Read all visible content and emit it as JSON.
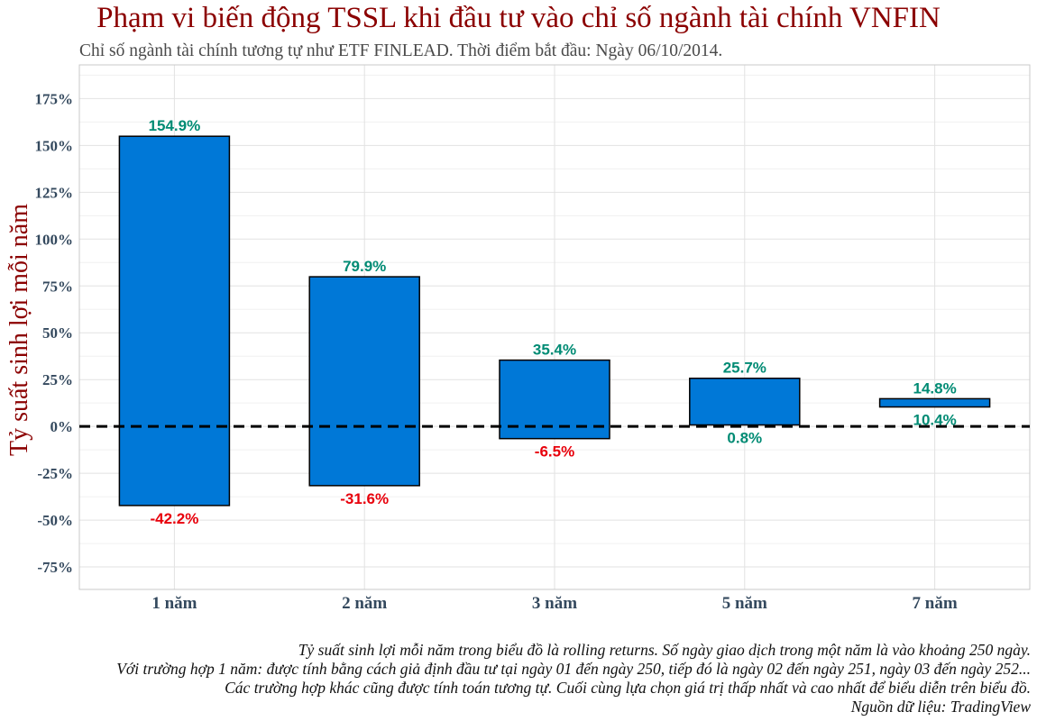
{
  "chart_data": {
    "type": "bar",
    "title": "Phạm vi biến động TSSL khi đầu tư vào chỉ số ngành tài chính VNFIN",
    "subtitle": "Chỉ số ngành tài chính tương tự như ETF FINLEAD. Thời điểm bắt đầu: Ngày 06/10/2014.",
    "xlabel": "",
    "ylabel": "Tỷ suất sinh lợi mỗi năm",
    "categories": [
      "1 năm",
      "2 năm",
      "3 năm",
      "5 năm",
      "7 năm"
    ],
    "series": [
      {
        "values": [
          -42.2,
          -31.6,
          -6.5,
          0.8,
          10.4
        ]
      },
      {
        "values": [
          154.9,
          79.9,
          35.4,
          25.7,
          14.8
        ]
      }
    ],
    "min_labels": [
      "-42.2%",
      "-31.6%",
      "-6.5%",
      "0.8%",
      "10.4%"
    ],
    "max_labels": [
      "154.9%",
      "79.9%",
      "35.4%",
      "25.7%",
      "14.8%"
    ],
    "yticks": [
      -75,
      -50,
      -25,
      0,
      25,
      50,
      75,
      100,
      125,
      150,
      175
    ],
    "ytick_labels": [
      "-75%",
      "-50%",
      "-25%",
      "0%",
      "25%",
      "50%",
      "75%",
      "100%",
      "125%",
      "150%",
      "175%"
    ],
    "ylim": [
      -87,
      193
    ],
    "grid": true,
    "colors": {
      "bar_fill": "#0078d7",
      "bar_stroke": "#000000",
      "positive_label": "#008b74",
      "negative_label": "#e8000b",
      "zero_line": "#000000"
    }
  },
  "footnotes": [
    "Tỷ suất sinh lợi mỗi năm trong biểu đồ là rolling returns. Số ngày giao dịch trong một năm là vào khoảng 250 ngày.",
    "Với trường hợp 1 năm: được tính bằng cách giả định đầu tư tại ngày 01 đến ngày 250, tiếp đó là ngày 02 đến ngày 251, ngày 03 đến ngày 252...",
    "Các trường hợp khác cũng được tính toán tương tự. Cuối cùng lựa chọn giá trị thấp nhất và cao nhất để biểu diễn trên biểu đồ.",
    "Nguồn dữ liệu: TradingView"
  ]
}
